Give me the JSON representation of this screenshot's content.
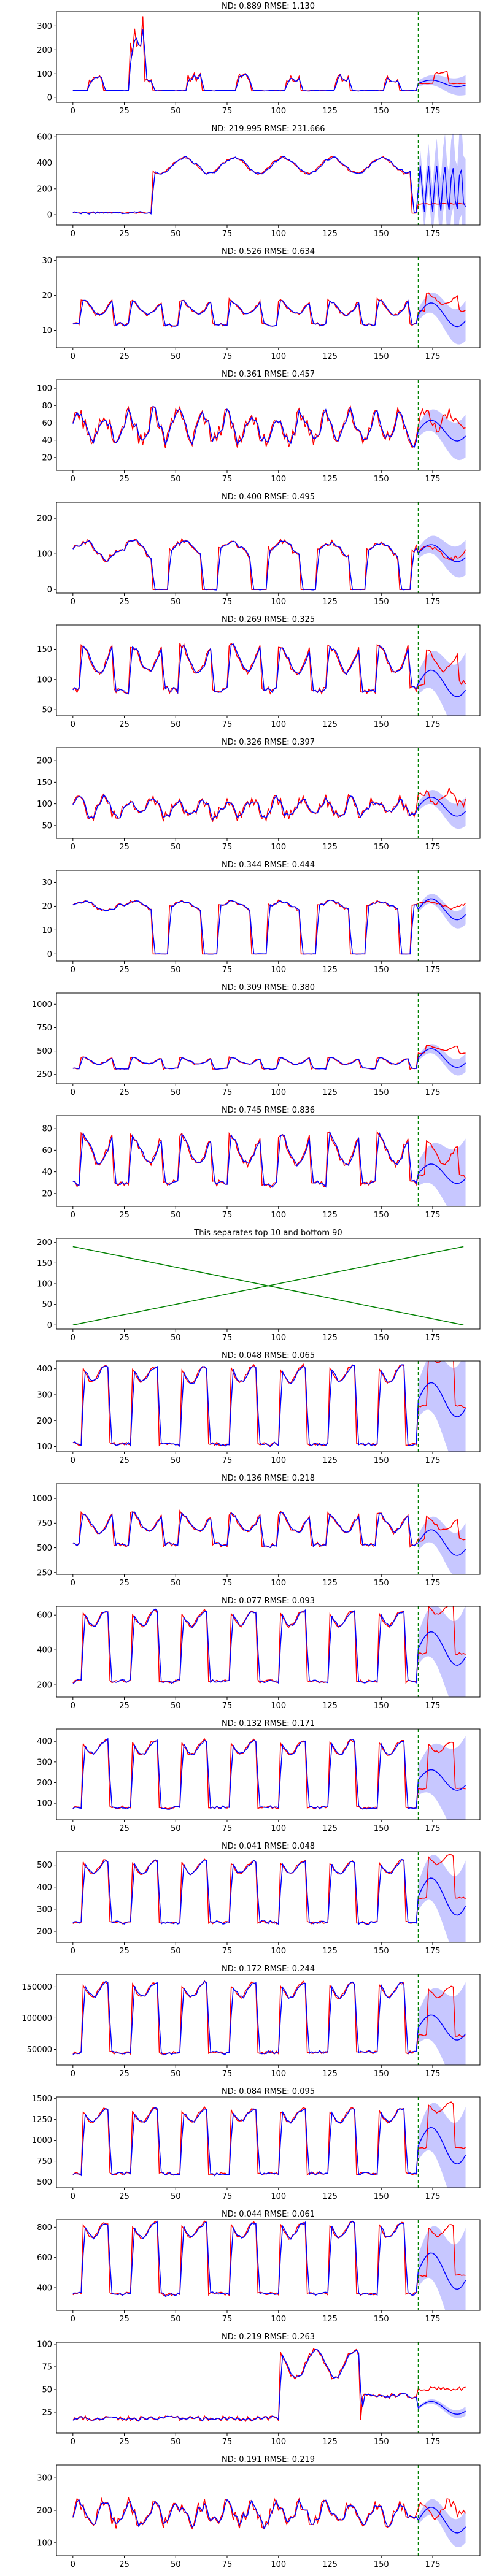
{
  "chart_data": [
    {
      "type": "line",
      "title": "ND:  0.889 RMSE:  1.130",
      "xlim": [
        -8,
        198
      ],
      "ylim": [
        -20,
        360
      ],
      "xticks": [
        0,
        25,
        50,
        75,
        100,
        125,
        150,
        175,
        200
      ],
      "yticks": [
        0,
        100,
        200,
        300
      ],
      "forecast_start": 168,
      "pattern": "spiky",
      "period": 24,
      "base": 25,
      "amp": 50,
      "forecast_level": 70,
      "series": [
        {
          "color": "#ff0000",
          "role": "actual"
        },
        {
          "color": "#0000ff",
          "role": "predicted"
        }
      ]
    },
    {
      "type": "line",
      "title": "ND:  219.995 RMSE:  231.666",
      "xlim": [
        -8,
        198
      ],
      "ylim": [
        -80,
        620
      ],
      "xticks": [
        0,
        25,
        50,
        75,
        100,
        125,
        150,
        175,
        200
      ],
      "yticks": [
        -200,
        0,
        200,
        400,
        600
      ],
      "forecast_start": 168,
      "pattern": "plateau",
      "period": 24,
      "base": 0,
      "amp": 450,
      "forecast_level": 200,
      "series": [
        {
          "color": "#ff0000",
          "role": "actual"
        },
        {
          "color": "#0000ff",
          "role": "predicted"
        }
      ]
    },
    {
      "type": "line",
      "title": "ND:  0.526 RMSE:  0.634",
      "xlim": [
        -8,
        198
      ],
      "ylim": [
        5,
        31
      ],
      "xticks": [
        0,
        25,
        50,
        75,
        100,
        125,
        150,
        175,
        200
      ],
      "yticks": [
        10,
        20,
        30
      ],
      "forecast_start": 168,
      "pattern": "daily",
      "period": 24,
      "base": 11,
      "amp": 7,
      "forecast_level": 17,
      "series": [
        {
          "color": "#ff0000",
          "role": "actual"
        },
        {
          "color": "#0000ff",
          "role": "predicted"
        }
      ]
    },
    {
      "type": "line",
      "title": "ND:  0.361 RMSE:  0.457",
      "xlim": [
        -8,
        198
      ],
      "ylim": [
        5,
        110
      ],
      "xticks": [
        0,
        25,
        50,
        75,
        100,
        125,
        150,
        175,
        200
      ],
      "yticks": [
        20,
        40,
        60,
        80,
        100
      ],
      "forecast_start": 168,
      "pattern": "noisy",
      "period": 12,
      "base": 40,
      "amp": 30,
      "forecast_level": 60,
      "series": [
        {
          "color": "#ff0000",
          "role": "actual"
        },
        {
          "color": "#0000ff",
          "role": "predicted"
        }
      ]
    },
    {
      "type": "line",
      "title": "ND:  0.400 RMSE:  0.495",
      "xlim": [
        -8,
        198
      ],
      "ylim": [
        -10,
        245
      ],
      "xticks": [
        0,
        25,
        50,
        75,
        100,
        125,
        150,
        175,
        200
      ],
      "yticks": [
        0,
        100,
        200
      ],
      "forecast_start": 168,
      "pattern": "dropout",
      "period": 24,
      "base": 110,
      "amp": 60,
      "forecast_level": 120,
      "series": [
        {
          "color": "#ff0000",
          "role": "actual"
        },
        {
          "color": "#0000ff",
          "role": "predicted"
        }
      ]
    },
    {
      "type": "line",
      "title": "ND:  0.269 RMSE:  0.325",
      "xlim": [
        -8,
        198
      ],
      "ylim": [
        40,
        190
      ],
      "xticks": [
        0,
        25,
        50,
        75,
        100,
        125,
        150,
        175,
        200
      ],
      "yticks": [
        50,
        100,
        150
      ],
      "forecast_start": 168,
      "pattern": "daily",
      "period": 24,
      "base": 75,
      "amp": 75,
      "forecast_level": 110,
      "series": [
        {
          "color": "#ff0000",
          "role": "actual"
        },
        {
          "color": "#0000ff",
          "role": "predicted"
        }
      ]
    },
    {
      "type": "line",
      "title": "ND:  0.326 RMSE:  0.397",
      "xlim": [
        -8,
        198
      ],
      "ylim": [
        20,
        230
      ],
      "xticks": [
        0,
        25,
        50,
        75,
        100,
        125,
        150,
        175,
        200
      ],
      "yticks": [
        50,
        100,
        150,
        200
      ],
      "forecast_start": 168,
      "pattern": "noisy",
      "period": 12,
      "base": 70,
      "amp": 40,
      "forecast_level": 110,
      "series": [
        {
          "color": "#ff0000",
          "role": "actual"
        },
        {
          "color": "#0000ff",
          "role": "predicted"
        }
      ]
    },
    {
      "type": "line",
      "title": "ND:  0.344 RMSE:  0.444",
      "xlim": [
        -8,
        198
      ],
      "ylim": [
        -3,
        35
      ],
      "xticks": [
        0,
        25,
        50,
        75,
        100,
        125,
        150,
        175,
        200
      ],
      "yticks": [
        0,
        10,
        20,
        30
      ],
      "forecast_start": 168,
      "pattern": "dropout",
      "period": 24,
      "base": 20,
      "amp": 5,
      "forecast_level": 22,
      "series": [
        {
          "color": "#ff0000",
          "role": "actual"
        },
        {
          "color": "#0000ff",
          "role": "predicted"
        }
      ]
    },
    {
      "type": "line",
      "title": "ND:  0.309 RMSE:  0.380",
      "xlim": [
        -8,
        198
      ],
      "ylim": [
        150,
        1120
      ],
      "xticks": [
        0,
        25,
        50,
        75,
        100,
        125,
        150,
        175,
        200
      ],
      "yticks": [
        250,
        500,
        750,
        1000
      ],
      "forecast_start": 168,
      "pattern": "daily",
      "period": 24,
      "base": 300,
      "amp": 120,
      "forecast_level": 500,
      "series": [
        {
          "color": "#ff0000",
          "role": "actual"
        },
        {
          "color": "#0000ff",
          "role": "predicted"
        }
      ]
    },
    {
      "type": "line",
      "title": "ND:  0.745 RMSE:  0.836",
      "xlim": [
        -8,
        198
      ],
      "ylim": [
        8,
        92
      ],
      "xticks": [
        0,
        25,
        50,
        75,
        100,
        125,
        150,
        175,
        200
      ],
      "yticks": [
        20,
        40,
        60,
        80
      ],
      "forecast_start": 168,
      "pattern": "daily",
      "period": 24,
      "base": 25,
      "amp": 45,
      "forecast_level": 45,
      "series": [
        {
          "color": "#ff0000",
          "role": "actual"
        },
        {
          "color": "#0000ff",
          "role": "predicted"
        }
      ]
    },
    {
      "type": "line",
      "title": "This separates top 10 and bottom 90",
      "xlim": [
        -8,
        198
      ],
      "ylim": [
        -10,
        210
      ],
      "xticks": [
        0,
        25,
        50,
        75,
        100,
        125,
        150,
        175,
        200
      ],
      "yticks": [
        0,
        50,
        100,
        150,
        200
      ],
      "pattern": "separator",
      "lines": [
        {
          "x": [
            0,
            190
          ],
          "y": [
            0,
            190
          ],
          "color": "#008000"
        },
        {
          "x": [
            0,
            190
          ],
          "y": [
            190,
            0
          ],
          "color": "#008000"
        }
      ]
    },
    {
      "type": "line",
      "title": "ND:  0.048 RMSE:  0.065",
      "xlim": [
        -8,
        198
      ],
      "ylim": [
        80,
        430
      ],
      "xticks": [
        0,
        25,
        50,
        75,
        100,
        125,
        150,
        175,
        200
      ],
      "yticks": [
        100,
        200,
        300,
        400
      ],
      "forecast_start": 168,
      "pattern": "square",
      "period": 24,
      "base": 110,
      "amp": 270,
      "forecast_level": 330,
      "series": [
        {
          "color": "#ff0000",
          "role": "actual"
        },
        {
          "color": "#0000ff",
          "role": "predicted"
        }
      ]
    },
    {
      "type": "line",
      "title": "ND:  0.136 RMSE:  0.218",
      "xlim": [
        -8,
        198
      ],
      "ylim": [
        230,
        1150
      ],
      "xticks": [
        0,
        25,
        50,
        75,
        100,
        125,
        150,
        175,
        200
      ],
      "yticks": [
        250,
        500,
        750,
        1000
      ],
      "forecast_start": 168,
      "pattern": "daily",
      "period": 24,
      "base": 500,
      "amp": 320,
      "forecast_level": 650,
      "series": [
        {
          "color": "#ff0000",
          "role": "actual"
        },
        {
          "color": "#0000ff",
          "role": "predicted"
        }
      ]
    },
    {
      "type": "line",
      "title": "ND:  0.077 RMSE:  0.093",
      "xlim": [
        -8,
        198
      ],
      "ylim": [
        130,
        650
      ],
      "xticks": [
        0,
        25,
        50,
        75,
        100,
        125,
        150,
        175,
        200
      ],
      "yticks": [
        200,
        400,
        600
      ],
      "forecast_start": 168,
      "pattern": "square",
      "period": 24,
      "base": 220,
      "amp": 360,
      "forecast_level": 480,
      "series": [
        {
          "color": "#ff0000",
          "role": "actual"
        },
        {
          "color": "#0000ff",
          "role": "predicted"
        }
      ]
    },
    {
      "type": "line",
      "title": "ND:  0.132 RMSE:  0.171",
      "xlim": [
        -8,
        198
      ],
      "ylim": [
        20,
        460
      ],
      "xticks": [
        0,
        25,
        50,
        75,
        100,
        125,
        150,
        175,
        200
      ],
      "yticks": [
        100,
        200,
        300,
        400
      ],
      "forecast_start": 168,
      "pattern": "square",
      "period": 24,
      "base": 80,
      "amp": 290,
      "forecast_level": 250,
      "series": [
        {
          "color": "#ff0000",
          "role": "actual"
        },
        {
          "color": "#0000ff",
          "role": "predicted"
        }
      ]
    },
    {
      "type": "line",
      "title": "ND:  0.041 RMSE:  0.048",
      "xlim": [
        -8,
        198
      ],
      "ylim": [
        150,
        560
      ],
      "xticks": [
        0,
        25,
        50,
        75,
        100,
        125,
        150,
        175,
        200
      ],
      "yticks": [
        200,
        300,
        400,
        500
      ],
      "forecast_start": 168,
      "pattern": "square",
      "period": 24,
      "base": 240,
      "amp": 250,
      "forecast_level": 420,
      "series": [
        {
          "color": "#ff0000",
          "role": "actual"
        },
        {
          "color": "#0000ff",
          "role": "predicted"
        }
      ]
    },
    {
      "type": "line",
      "title": "ND:  0.172 RMSE:  0.244",
      "xlim": [
        -8,
        198
      ],
      "ylim": [
        25000,
        170000
      ],
      "xticks": [
        0,
        25,
        50,
        75,
        100,
        125,
        150,
        175,
        200
      ],
      "yticks": [
        50000,
        100000,
        150000
      ],
      "forecast_start": 168,
      "pattern": "square",
      "period": 24,
      "base": 45000,
      "amp": 100000,
      "forecast_level": 100000,
      "series": [
        {
          "color": "#ff0000",
          "role": "actual"
        },
        {
          "color": "#0000ff",
          "role": "predicted"
        }
      ]
    },
    {
      "type": "line",
      "title": "ND:  0.084 RMSE:  0.095",
      "xlim": [
        -8,
        198
      ],
      "ylim": [
        430,
        1520
      ],
      "xticks": [
        0,
        25,
        50,
        75,
        100,
        125,
        150,
        175,
        200
      ],
      "yticks": [
        500,
        750,
        1000,
        1250,
        1500
      ],
      "forecast_start": 168,
      "pattern": "square",
      "period": 24,
      "base": 600,
      "amp": 700,
      "forecast_level": 1100,
      "series": [
        {
          "color": "#ff0000",
          "role": "actual"
        },
        {
          "color": "#0000ff",
          "role": "predicted"
        }
      ]
    },
    {
      "type": "line",
      "title": "ND:  0.044 RMSE:  0.061",
      "xlim": [
        -8,
        198
      ],
      "ylim": [
        250,
        850
      ],
      "xticks": [
        0,
        25,
        50,
        75,
        100,
        125,
        150,
        175,
        200
      ],
      "yticks": [
        400,
        600,
        800
      ],
      "forecast_start": 168,
      "pattern": "square",
      "period": 24,
      "base": 360,
      "amp": 420,
      "forecast_level": 600,
      "series": [
        {
          "color": "#ff0000",
          "role": "actual"
        },
        {
          "color": "#0000ff",
          "role": "predicted"
        }
      ]
    },
    {
      "type": "line",
      "title": "ND:  0.219 RMSE:  0.263",
      "xlim": [
        -8,
        198
      ],
      "ylim": [
        2,
        102
      ],
      "xticks": [
        0,
        25,
        50,
        75,
        100,
        125,
        150,
        175,
        200
      ],
      "yticks": [
        25,
        50,
        75,
        100
      ],
      "forecast_start": 168,
      "pattern": "bump",
      "period": 24,
      "base": 18,
      "amp": 6,
      "forecast_level": 35,
      "series": [
        {
          "color": "#ff0000",
          "role": "actual"
        },
        {
          "color": "#0000ff",
          "role": "predicted"
        }
      ]
    },
    {
      "type": "line",
      "title": "ND:  0.191 RMSE:  0.219",
      "xlim": [
        -8,
        198
      ],
      "ylim": [
        60,
        340
      ],
      "xticks": [
        0,
        25,
        50,
        75,
        100,
        125,
        150,
        175,
        200
      ],
      "yticks": [
        100,
        200,
        300
      ],
      "forecast_start": 168,
      "pattern": "noisy",
      "period": 12,
      "base": 160,
      "amp": 60,
      "forecast_level": 200,
      "series": [
        {
          "color": "#ff0000",
          "role": "actual"
        },
        {
          "color": "#0000ff",
          "role": "predicted"
        }
      ]
    }
  ]
}
